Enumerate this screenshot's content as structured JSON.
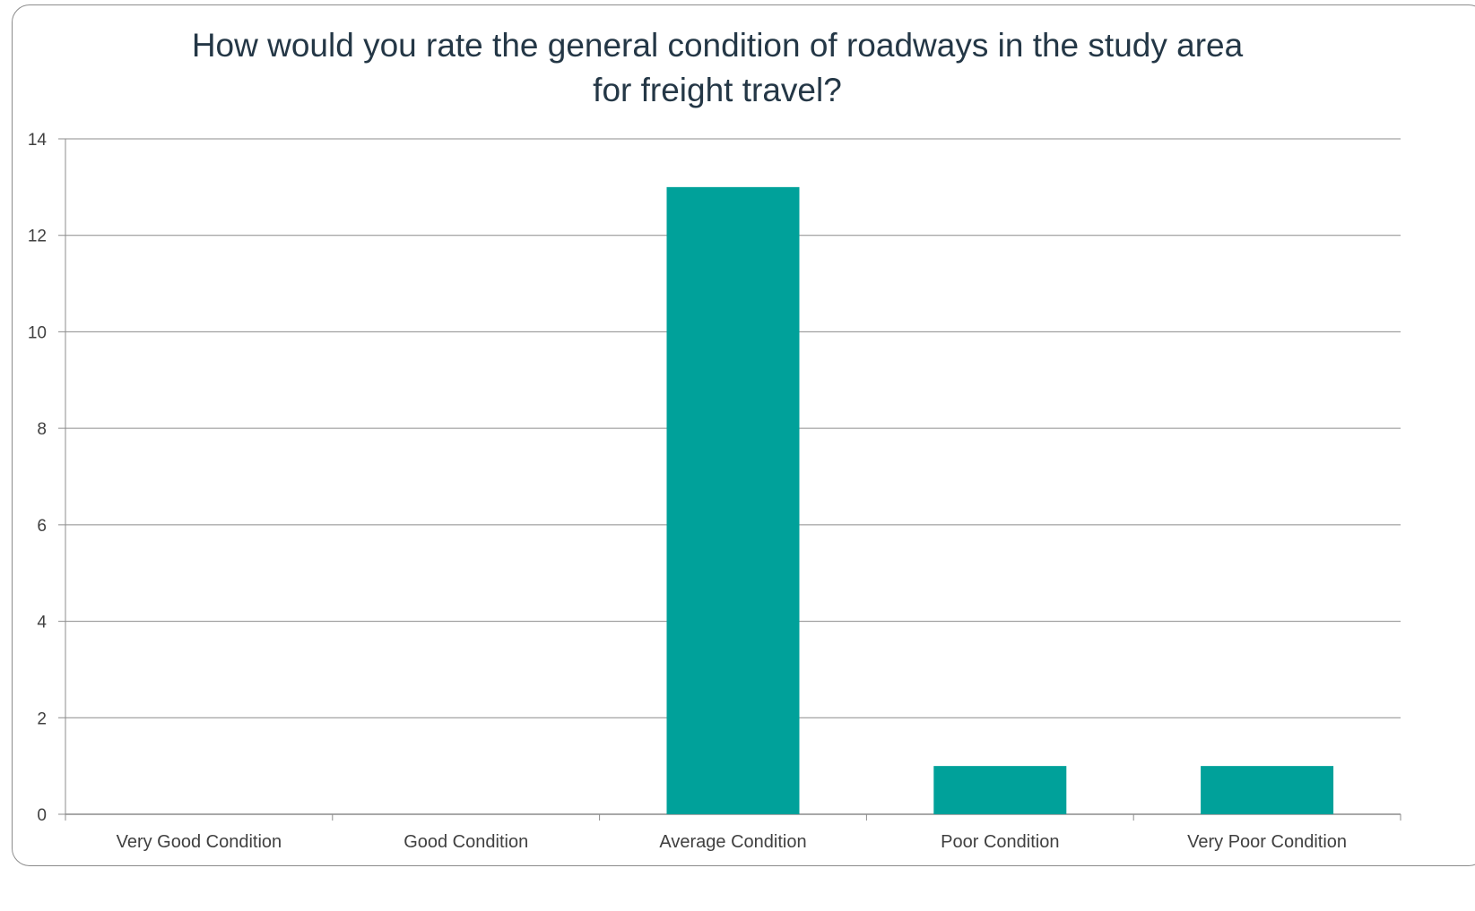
{
  "chart_data": {
    "type": "bar",
    "title_lines": [
      "How would you rate the general condition of roadways in the study area",
      "for freight travel?"
    ],
    "categories": [
      "Very Good Condition",
      "Good Condition",
      "Average Condition",
      "Poor Condition",
      "Very Poor Condition"
    ],
    "values": [
      0,
      0,
      13,
      1,
      1
    ],
    "ylim": [
      0,
      14
    ],
    "yticks": [
      0,
      2,
      4,
      6,
      8,
      10,
      12,
      14
    ],
    "xlabel": "",
    "ylabel": "",
    "grid": true,
    "legend": "none",
    "bar_color": "#00A19A",
    "gridline_color": "#8c8c8c",
    "text_color": "#404040"
  }
}
